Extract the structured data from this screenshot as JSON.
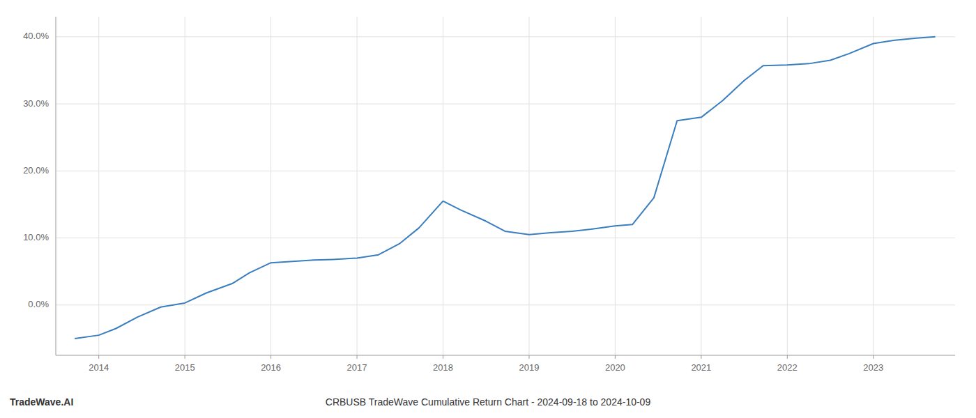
{
  "chart_data": {
    "type": "line",
    "title": "CRBUSB TradeWave Cumulative Return Chart - 2024-09-18 to 2024-10-09",
    "annotations": [
      "TradeWave.AI"
    ],
    "x": [
      2013.72,
      2014.0,
      2014.2,
      2014.45,
      2014.72,
      2015.0,
      2015.25,
      2015.55,
      2015.75,
      2016.0,
      2016.25,
      2016.5,
      2016.72,
      2017.0,
      2017.25,
      2017.5,
      2017.72,
      2018.0,
      2018.2,
      2018.5,
      2018.72,
      2019.0,
      2019.25,
      2019.5,
      2019.72,
      2020.0,
      2020.2,
      2020.45,
      2020.72,
      2021.0,
      2021.25,
      2021.5,
      2021.72,
      2022.0,
      2022.25,
      2022.5,
      2022.72,
      2023.0,
      2023.25,
      2023.5,
      2023.72
    ],
    "values": [
      -5.0,
      -4.5,
      -3.5,
      -1.8,
      -0.3,
      0.3,
      1.8,
      3.2,
      4.8,
      6.3,
      6.5,
      6.7,
      6.8,
      7.0,
      7.5,
      9.2,
      11.5,
      15.5,
      14.2,
      12.5,
      11.0,
      10.5,
      10.8,
      11.0,
      11.3,
      11.8,
      12.0,
      16.0,
      27.5,
      28.0,
      30.5,
      33.5,
      35.7,
      35.8,
      36.0,
      36.5,
      37.5,
      39.0,
      39.5,
      39.8,
      40.0
    ],
    "color": "#3a7ebf",
    "xlim": [
      2013.5,
      2023.95
    ],
    "xticks": [
      2014,
      2015,
      2016,
      2017,
      2018,
      2019,
      2020,
      2021,
      2022,
      2023
    ],
    "ylim": [
      -7.5,
      43
    ],
    "yticks": [
      {
        "value": 0,
        "label": "0.0%"
      },
      {
        "value": 10,
        "label": "10.0%"
      },
      {
        "value": 20,
        "label": "20.0%"
      },
      {
        "value": 30,
        "label": "30.0%"
      },
      {
        "value": 40,
        "label": "40.0%"
      }
    ],
    "grid": true
  }
}
